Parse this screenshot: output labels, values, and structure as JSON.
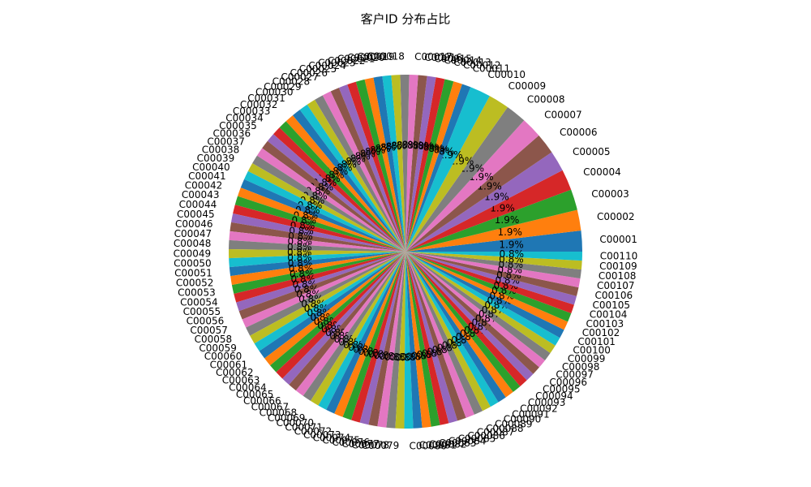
{
  "chart_data": {
    "type": "pie",
    "title": "客户ID 分布占比",
    "categories": [
      "C00001",
      "C00002",
      "C00003",
      "C00004",
      "C00005",
      "C00006",
      "C00007",
      "C00008",
      "C00009",
      "C00010",
      "C00011",
      "C00012",
      "C00013",
      "C00014",
      "C00015",
      "C00016",
      "C00017",
      "C00018",
      "C00019",
      "C00020",
      "C00021",
      "C00022",
      "C00023",
      "C00024",
      "C00025",
      "C00026",
      "C00027",
      "C00028",
      "C00029",
      "C00030",
      "C00031",
      "C00032",
      "C00033",
      "C00034",
      "C00035",
      "C00036",
      "C00037",
      "C00038",
      "C00039",
      "C00040",
      "C00041",
      "C00042",
      "C00043",
      "C00044",
      "C00045",
      "C00046",
      "C00047",
      "C00048",
      "C00049",
      "C00050",
      "C00051",
      "C00052",
      "C00053",
      "C00054",
      "C00055",
      "C00056",
      "C00057",
      "C00058",
      "C00059",
      "C00060",
      "C00061",
      "C00062",
      "C00063",
      "C00064",
      "C00065",
      "C00066",
      "C00067",
      "C00068",
      "C00069",
      "C00070",
      "C00071",
      "C00072",
      "C00073",
      "C00074",
      "C00075",
      "C00076",
      "C00077",
      "C00078",
      "C00079",
      "C00080",
      "C00081",
      "C00082",
      "C00083",
      "C00084",
      "C00085",
      "C00086",
      "C00087",
      "C00088",
      "C00089",
      "C00090",
      "C00091",
      "C00092",
      "C00093",
      "C00094",
      "C00095",
      "C00096",
      "C00097",
      "C00098",
      "C00099",
      "C00100",
      "C00101",
      "C00102",
      "C00103",
      "C00104",
      "C00105",
      "C00106",
      "C00107",
      "C00108",
      "C00109",
      "C00110"
    ],
    "values": [
      1.9,
      1.9,
      1.9,
      1.9,
      1.9,
      1.9,
      1.9,
      1.9,
      1.9,
      1.9,
      0.81,
      0.81,
      0.81,
      0.81,
      0.81,
      0.81,
      0.81,
      0.81,
      0.81,
      0.81,
      0.81,
      0.81,
      0.81,
      0.81,
      0.81,
      0.81,
      0.81,
      0.81,
      0.81,
      0.81,
      0.81,
      0.81,
      0.81,
      0.81,
      0.81,
      0.81,
      0.81,
      0.81,
      0.81,
      0.81,
      0.81,
      0.81,
      0.81,
      0.81,
      0.81,
      0.81,
      0.81,
      0.81,
      0.81,
      0.81,
      0.81,
      0.81,
      0.81,
      0.81,
      0.81,
      0.81,
      0.81,
      0.81,
      0.81,
      0.81,
      0.81,
      0.81,
      0.81,
      0.81,
      0.81,
      0.81,
      0.81,
      0.81,
      0.81,
      0.81,
      0.81,
      0.81,
      0.81,
      0.81,
      0.81,
      0.81,
      0.81,
      0.81,
      0.81,
      0.81,
      0.81,
      0.81,
      0.81,
      0.81,
      0.81,
      0.81,
      0.81,
      0.81,
      0.81,
      0.81,
      0.81,
      0.81,
      0.81,
      0.81,
      0.81,
      0.81,
      0.81,
      0.81,
      0.81,
      0.81,
      0.81,
      0.81,
      0.81,
      0.81,
      0.81,
      0.81,
      0.81,
      0.81,
      0.81,
      0.81
    ],
    "value_labels": [
      "1.9%",
      "1.9%",
      "1.9%",
      "1.9%",
      "1.9%",
      "1.9%",
      "1.9%",
      "1.9%",
      "1.9%",
      "1.9%",
      "0.8%",
      "0.8%",
      "0.8%",
      "0.8%",
      "0.8%",
      "0.8%",
      "0.8%",
      "0.8%",
      "0.8%",
      "0.8%",
      "0.8%",
      "0.8%",
      "0.8%",
      "0.8%",
      "0.8%",
      "0.8%",
      "0.8%",
      "0.8%",
      "0.8%",
      "0.8%",
      "0.8%",
      "0.8%",
      "0.8%",
      "0.8%",
      "0.8%",
      "0.8%",
      "0.8%",
      "0.8%",
      "0.8%",
      "0.8%",
      "0.8%",
      "0.8%",
      "0.8%",
      "0.8%",
      "0.8%",
      "0.8%",
      "0.8%",
      "0.8%",
      "0.8%",
      "0.8%",
      "0.8%",
      "0.8%",
      "0.8%",
      "0.8%",
      "0.8%",
      "0.8%",
      "0.8%",
      "0.8%",
      "0.8%",
      "0.8%",
      "0.8%",
      "0.8%",
      "0.8%",
      "0.8%",
      "0.8%",
      "0.8%",
      "0.8%",
      "0.8%",
      "0.8%",
      "0.8%",
      "0.8%",
      "0.8%",
      "0.8%",
      "0.8%",
      "0.8%",
      "0.8%",
      "0.8%",
      "0.8%",
      "0.8%",
      "0.8%",
      "0.8%",
      "0.8%",
      "0.8%",
      "0.8%",
      "0.8%",
      "0.8%",
      "0.8%",
      "0.8%",
      "0.8%",
      "0.8%",
      "0.8%",
      "0.8%",
      "0.8%",
      "0.8%",
      "0.8%",
      "0.8%",
      "0.8%",
      "0.8%",
      "0.8%",
      "0.8%",
      "0.8%",
      "0.8%",
      "0.8%",
      "0.8%",
      "0.8%",
      "0.8%",
      "0.8%",
      "0.8%",
      "0.8%",
      "0.8%"
    ],
    "colors": [
      "#1f77b4",
      "#ff7f0e",
      "#2ca02c",
      "#d62728",
      "#9467bd",
      "#8c564b",
      "#e377c2",
      "#7f7f7f",
      "#bcbd22",
      "#17becf"
    ]
  }
}
